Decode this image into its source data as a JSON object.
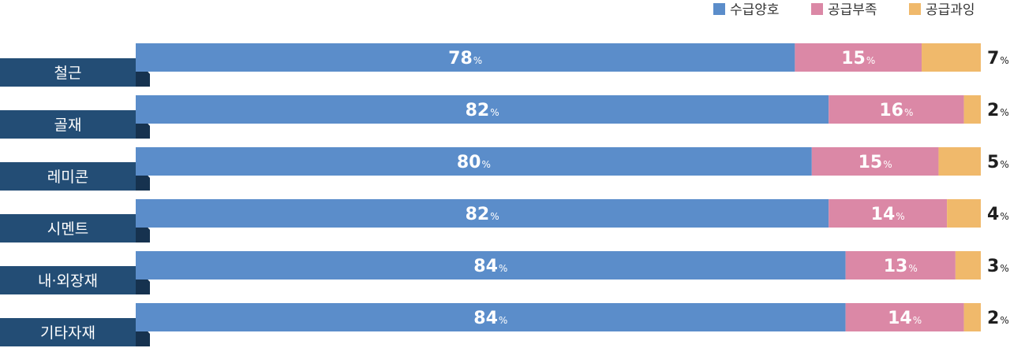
{
  "chart_data": {
    "type": "bar",
    "orientation": "horizontal",
    "stacked": true,
    "unit": "%",
    "categories": [
      "철근",
      "골재",
      "레미콘",
      "시멘트",
      "내·외장재",
      "기타자재"
    ],
    "series": [
      {
        "name": "수급양호",
        "color": "#5b8dca",
        "values": [
          78,
          82,
          80,
          82,
          84,
          84
        ]
      },
      {
        "name": "공급부족",
        "color": "#db88a6",
        "values": [
          15,
          16,
          15,
          14,
          13,
          14
        ]
      },
      {
        "name": "공급과잉",
        "color": "#f0b96b",
        "values": [
          7,
          2,
          5,
          4,
          3,
          2
        ]
      }
    ],
    "xlim": [
      0,
      100
    ],
    "grid": false,
    "legend": "top-right",
    "label_color": "#234d75",
    "label_shadow_color": "#16324f"
  }
}
